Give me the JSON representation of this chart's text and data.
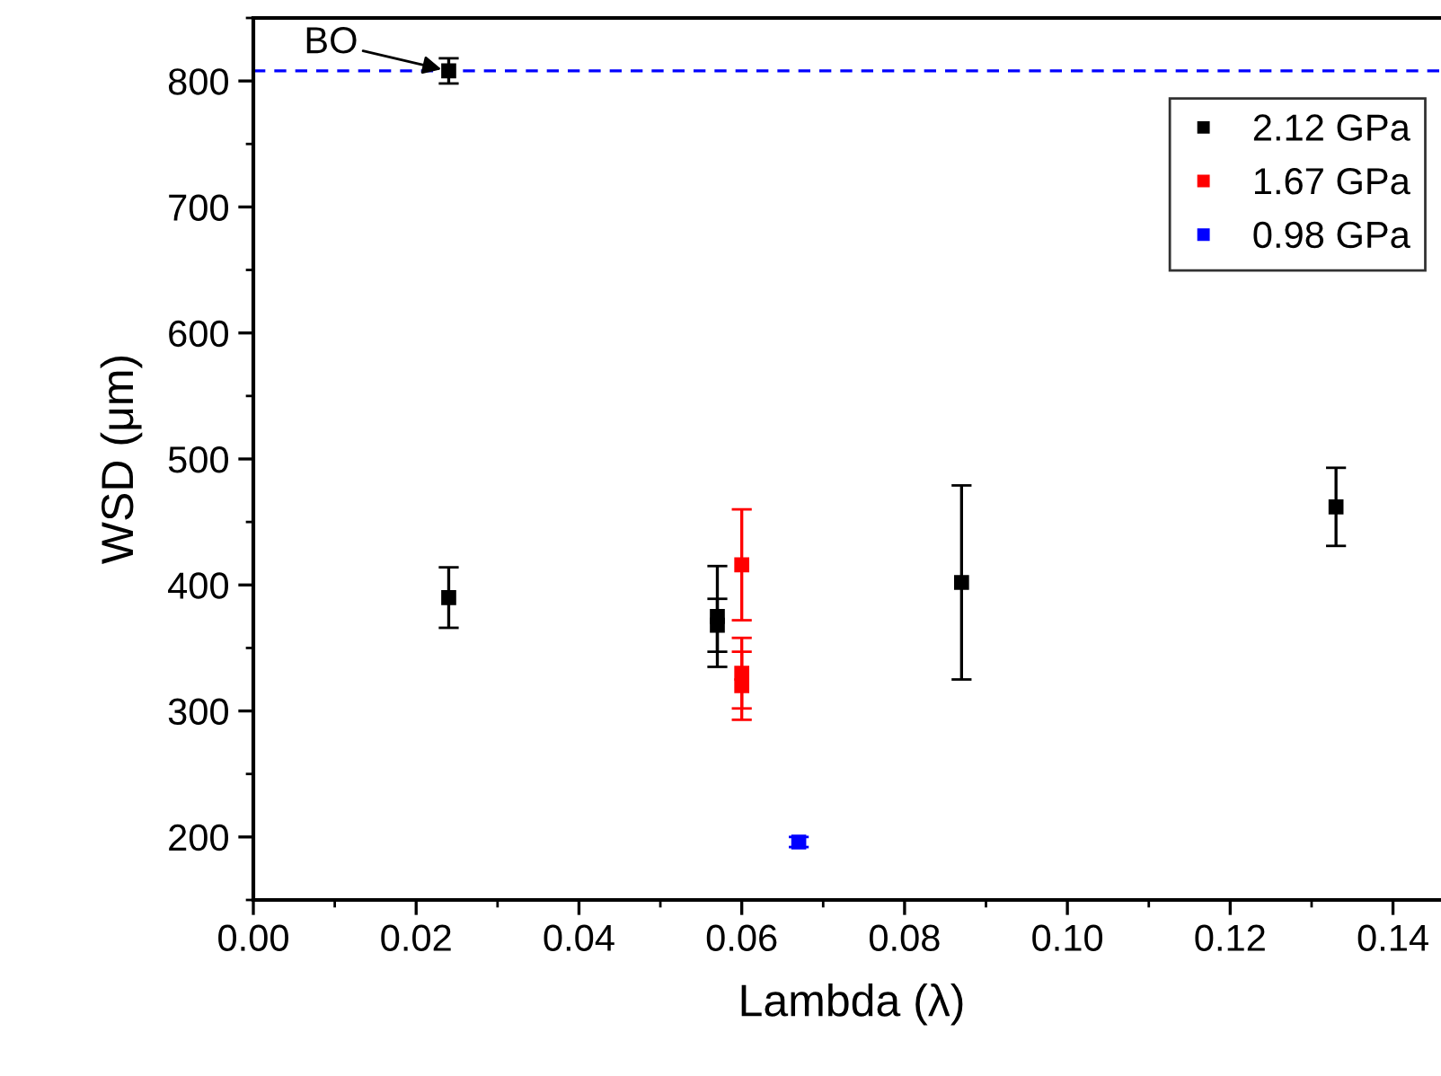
{
  "chart_data": {
    "type": "scatter",
    "xlabel": "Lambda (λ)",
    "ylabel": "WSD (μm)",
    "series": [
      {
        "name": "2.12 GPa",
        "color": "#000000",
        "x": [
          0.024,
          0.024,
          0.057,
          0.057,
          0.087,
          0.133
        ],
        "values": [
          808,
          390,
          375,
          368,
          402,
          462
        ],
        "errors": [
          10,
          24,
          40,
          21,
          77,
          31
        ]
      },
      {
        "name": "1.67 GPa",
        "color": "#ff0000",
        "x": [
          0.06,
          0.06,
          0.06
        ],
        "values": [
          416,
          330,
          320
        ],
        "errors": [
          44,
          28,
          27
        ]
      },
      {
        "name": "0.98 GPa",
        "color": "#0000ff",
        "x": [
          0.067
        ],
        "values": [
          196
        ],
        "errors": [
          4
        ]
      }
    ],
    "xlim": [
      0,
      0.147
    ],
    "xticks": [
      {
        "value": 0,
        "label": "0.00"
      },
      {
        "value": 0.02,
        "label": "0.02"
      },
      {
        "value": 0.04,
        "label": "0.04"
      },
      {
        "value": 0.06,
        "label": "0.06"
      },
      {
        "value": 0.08,
        "label": "0.08"
      },
      {
        "value": 0.1,
        "label": "0.10"
      },
      {
        "value": 0.12,
        "label": "0.12"
      },
      {
        "value": 0.14,
        "label": "0.14"
      }
    ],
    "ylim": [
      150,
      850
    ],
    "yticks": [
      200,
      300,
      400,
      500,
      600,
      700,
      800
    ],
    "ref_lines": [
      {
        "axis": "y",
        "value": 808,
        "color": "#0000ff",
        "line_style": "dashed"
      }
    ],
    "annotations": [
      {
        "text": "BO",
        "x": 0.024,
        "y": 808
      }
    ],
    "marker": "square",
    "legend": "top right",
    "grid": false
  }
}
